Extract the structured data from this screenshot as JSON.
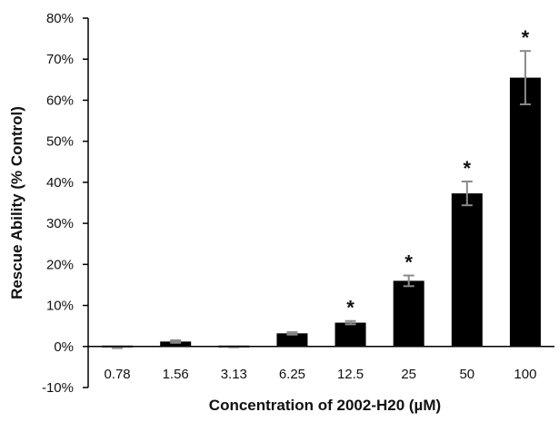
{
  "chart_data": {
    "type": "bar",
    "title": "",
    "xlabel": "Concentration of 2002-H20 (µM)",
    "ylabel": "Rescue Ability (% Control)",
    "categories": [
      "0.78",
      "1.56",
      "3.13",
      "6.25",
      "12.5",
      "25",
      "50",
      "100"
    ],
    "values": [
      -0.2,
      1.2,
      -0.1,
      3.2,
      5.8,
      16.0,
      37.3,
      65.5
    ],
    "error": [
      0.2,
      0.3,
      0.1,
      0.3,
      0.4,
      1.3,
      2.9,
      6.5
    ],
    "significant_labels": [
      "",
      "",
      "",
      "",
      "*",
      "*",
      "*",
      "*"
    ],
    "ylim": [
      -10,
      80
    ],
    "yticks": [
      -10,
      0,
      10,
      20,
      30,
      40,
      50,
      60,
      70,
      80
    ],
    "ytick_labels": [
      "-10%",
      "0%",
      "10%",
      "20%",
      "30%",
      "40%",
      "50%",
      "60%",
      "70%",
      "80%"
    ],
    "grid": false,
    "legend": "none",
    "colors": {
      "bar": "#000000",
      "error_bar": "#8a8a8a",
      "axis": "#000000"
    }
  }
}
